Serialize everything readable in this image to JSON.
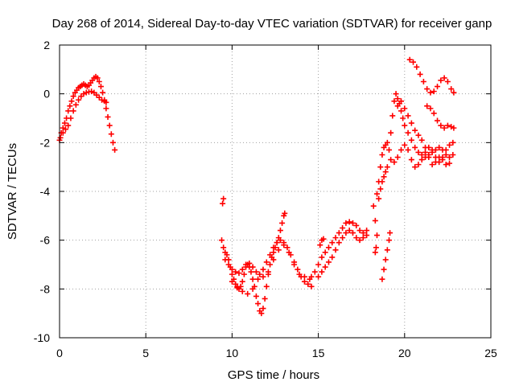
{
  "chart_data": {
    "type": "scatter",
    "title": "Day 268 of 2014, Sidereal Day-to-day VTEC variation (SDTVAR) for receiver ganp",
    "xlabel": "GPS time / hours",
    "ylabel": "SDTVAR / TECUs",
    "xlim": [
      0,
      25
    ],
    "ylim": [
      -10,
      2
    ],
    "x_ticks": [
      0,
      5,
      10,
      15,
      20,
      25
    ],
    "y_ticks": [
      -10,
      -8,
      -6,
      -4,
      -2,
      0,
      2
    ],
    "grid": true,
    "marker": "+",
    "color": "#ff0000",
    "series": [
      {
        "points": [
          [
            0.0,
            -1.9
          ],
          [
            0.1,
            -1.6
          ],
          [
            0.2,
            -1.4
          ],
          [
            0.3,
            -1.2
          ],
          [
            0.4,
            -1.0
          ],
          [
            0.5,
            -0.7
          ],
          [
            0.6,
            -0.5
          ],
          [
            0.7,
            -0.3
          ],
          [
            0.8,
            -0.1
          ],
          [
            0.9,
            0.05
          ],
          [
            1.0,
            0.15
          ],
          [
            1.1,
            0.25
          ],
          [
            1.2,
            0.3
          ],
          [
            1.3,
            0.35
          ],
          [
            1.4,
            0.4
          ],
          [
            1.5,
            0.35
          ],
          [
            1.6,
            0.3
          ],
          [
            1.7,
            0.35
          ],
          [
            1.8,
            0.45
          ],
          [
            1.9,
            0.55
          ],
          [
            2.0,
            0.65
          ],
          [
            2.1,
            0.7
          ],
          [
            2.2,
            0.65
          ],
          [
            2.3,
            0.5
          ],
          [
            2.4,
            0.3
          ],
          [
            2.5,
            0.05
          ],
          [
            2.6,
            -0.25
          ],
          [
            2.7,
            -0.6
          ],
          [
            2.8,
            -0.95
          ],
          [
            2.9,
            -1.3
          ],
          [
            3.0,
            -1.65
          ],
          [
            3.1,
            -2.0
          ],
          [
            3.2,
            -2.3
          ],
          [
            0.05,
            -1.8
          ],
          [
            0.2,
            -1.6
          ],
          [
            0.35,
            -1.45
          ],
          [
            0.5,
            -1.3
          ],
          [
            0.65,
            -1.0
          ],
          [
            0.8,
            -0.7
          ],
          [
            0.95,
            -0.45
          ],
          [
            1.1,
            -0.25
          ],
          [
            1.25,
            -0.1
          ],
          [
            1.4,
            0.0
          ],
          [
            1.55,
            0.05
          ],
          [
            1.7,
            0.08
          ],
          [
            1.85,
            0.1
          ],
          [
            2.0,
            0.05
          ],
          [
            2.15,
            -0.05
          ],
          [
            2.3,
            -0.15
          ],
          [
            2.45,
            -0.25
          ],
          [
            2.6,
            -0.3
          ],
          [
            2.7,
            -0.35
          ],
          [
            9.45,
            -4.5
          ],
          [
            9.5,
            -4.3
          ],
          [
            9.4,
            -6.0
          ],
          [
            9.5,
            -6.3
          ],
          [
            9.6,
            -6.5
          ],
          [
            9.7,
            -6.6
          ],
          [
            9.8,
            -6.8
          ],
          [
            9.9,
            -7.1
          ],
          [
            10.0,
            -7.4
          ],
          [
            10.1,
            -7.6
          ],
          [
            10.2,
            -7.8
          ],
          [
            10.3,
            -7.95
          ],
          [
            10.4,
            -8.0
          ],
          [
            10.5,
            -7.9
          ],
          [
            10.6,
            -7.7
          ],
          [
            10.7,
            -7.4
          ],
          [
            10.8,
            -7.1
          ],
          [
            10.9,
            -7.0
          ],
          [
            11.0,
            -7.1
          ],
          [
            11.1,
            -7.3
          ],
          [
            11.2,
            -7.6
          ],
          [
            11.3,
            -7.9
          ],
          [
            11.4,
            -8.3
          ],
          [
            11.5,
            -8.6
          ],
          [
            11.6,
            -8.9
          ],
          [
            11.7,
            -9.0
          ],
          [
            11.8,
            -8.8
          ],
          [
            11.9,
            -8.4
          ],
          [
            12.0,
            -7.9
          ],
          [
            12.1,
            -7.4
          ],
          [
            12.2,
            -7.0
          ],
          [
            12.3,
            -6.7
          ],
          [
            12.4,
            -6.5
          ],
          [
            12.5,
            -6.3
          ],
          [
            12.6,
            -6.1
          ],
          [
            12.7,
            -5.9
          ],
          [
            12.8,
            -5.6
          ],
          [
            12.9,
            -5.3
          ],
          [
            13.0,
            -5.0
          ],
          [
            13.05,
            -4.9
          ],
          [
            9.6,
            -6.8
          ],
          [
            9.8,
            -7.0
          ],
          [
            10.0,
            -7.2
          ],
          [
            10.2,
            -7.3
          ],
          [
            10.4,
            -7.35
          ],
          [
            10.6,
            -7.2
          ],
          [
            10.8,
            -7.0
          ],
          [
            11.0,
            -6.95
          ],
          [
            11.2,
            -7.1
          ],
          [
            11.4,
            -7.3
          ],
          [
            11.6,
            -7.4
          ],
          [
            11.8,
            -7.2
          ],
          [
            12.0,
            -6.9
          ],
          [
            12.2,
            -6.6
          ],
          [
            12.4,
            -6.3
          ],
          [
            12.6,
            -6.1
          ],
          [
            12.8,
            -6.0
          ],
          [
            13.0,
            -6.1
          ],
          [
            13.2,
            -6.3
          ],
          [
            13.4,
            -6.6
          ],
          [
            13.6,
            -6.9
          ],
          [
            13.8,
            -7.2
          ],
          [
            14.0,
            -7.5
          ],
          [
            14.2,
            -7.7
          ],
          [
            14.4,
            -7.8
          ],
          [
            14.6,
            -7.9
          ],
          [
            10.0,
            -7.7
          ],
          [
            10.3,
            -7.9
          ],
          [
            10.6,
            -8.1
          ],
          [
            10.9,
            -8.2
          ],
          [
            11.2,
            -8.0
          ],
          [
            11.5,
            -7.6
          ],
          [
            11.8,
            -7.5
          ],
          [
            12.1,
            -7.3
          ],
          [
            12.4,
            -6.8
          ],
          [
            12.7,
            -6.4
          ],
          [
            13.0,
            -6.2
          ],
          [
            13.3,
            -6.5
          ],
          [
            13.6,
            -7.0
          ],
          [
            13.9,
            -7.4
          ],
          [
            14.2,
            -7.5
          ],
          [
            14.5,
            -7.6
          ],
          [
            14.6,
            -7.5
          ],
          [
            14.8,
            -7.3
          ],
          [
            15.0,
            -7.0
          ],
          [
            15.2,
            -6.7
          ],
          [
            15.4,
            -6.5
          ],
          [
            15.6,
            -6.3
          ],
          [
            15.8,
            -6.1
          ],
          [
            16.0,
            -5.9
          ],
          [
            16.2,
            -5.7
          ],
          [
            16.4,
            -5.5
          ],
          [
            16.6,
            -5.3
          ],
          [
            16.8,
            -5.25
          ],
          [
            17.0,
            -5.3
          ],
          [
            17.2,
            -5.4
          ],
          [
            17.4,
            -5.6
          ],
          [
            17.6,
            -5.7
          ],
          [
            17.8,
            -5.8
          ],
          [
            15.0,
            -7.5
          ],
          [
            15.2,
            -7.3
          ],
          [
            15.4,
            -7.1
          ],
          [
            15.6,
            -6.9
          ],
          [
            15.8,
            -6.7
          ],
          [
            16.0,
            -6.4
          ],
          [
            16.2,
            -6.1
          ],
          [
            16.4,
            -5.9
          ],
          [
            16.6,
            -5.7
          ],
          [
            16.8,
            -5.6
          ],
          [
            17.0,
            -5.7
          ],
          [
            17.2,
            -5.9
          ],
          [
            17.4,
            -6.0
          ],
          [
            17.6,
            -5.9
          ],
          [
            17.8,
            -5.6
          ],
          [
            15.1,
            -6.2
          ],
          [
            15.2,
            -6.0
          ],
          [
            15.3,
            -5.95
          ],
          [
            18.2,
            -4.6
          ],
          [
            18.3,
            -5.2
          ],
          [
            18.4,
            -5.8
          ],
          [
            18.35,
            -6.3
          ],
          [
            18.3,
            -6.5
          ],
          [
            18.5,
            -4.3
          ],
          [
            18.6,
            -3.9
          ],
          [
            18.7,
            -3.6
          ],
          [
            18.8,
            -3.4
          ],
          [
            18.9,
            -3.2
          ],
          [
            19.0,
            -3.0
          ],
          [
            18.7,
            -7.6
          ],
          [
            18.8,
            -7.2
          ],
          [
            18.9,
            -6.8
          ],
          [
            19.0,
            -6.4
          ],
          [
            19.1,
            -6.0
          ],
          [
            19.15,
            -5.7
          ],
          [
            18.4,
            -4.1
          ],
          [
            18.5,
            -3.6
          ],
          [
            18.6,
            -3.0
          ],
          [
            18.7,
            -2.5
          ],
          [
            18.8,
            -2.2
          ],
          [
            18.9,
            -2.1
          ],
          [
            19.0,
            -2.0
          ],
          [
            19.1,
            -2.3
          ],
          [
            19.2,
            -2.7
          ],
          [
            19.2,
            -1.6
          ],
          [
            19.3,
            -0.9
          ],
          [
            19.4,
            -0.3
          ],
          [
            19.5,
            0.0
          ],
          [
            19.6,
            -0.2
          ],
          [
            19.7,
            -0.4
          ],
          [
            19.8,
            -0.7
          ],
          [
            19.9,
            -1.0
          ],
          [
            20.0,
            -1.3
          ],
          [
            20.2,
            -1.6
          ],
          [
            20.4,
            -1.9
          ],
          [
            20.6,
            -2.2
          ],
          [
            20.8,
            -2.4
          ],
          [
            21.0,
            -2.5
          ],
          [
            21.2,
            -2.6
          ],
          [
            21.4,
            -2.5
          ],
          [
            21.6,
            -2.4
          ],
          [
            21.8,
            -2.3
          ],
          [
            22.0,
            -2.2
          ],
          [
            22.2,
            -2.3
          ],
          [
            22.4,
            -2.5
          ],
          [
            22.6,
            -2.6
          ],
          [
            22.8,
            -2.5
          ],
          [
            19.4,
            -2.8
          ],
          [
            19.6,
            -2.6
          ],
          [
            19.8,
            -2.3
          ],
          [
            20.0,
            -2.1
          ],
          [
            20.2,
            -2.3
          ],
          [
            20.4,
            -2.7
          ],
          [
            20.6,
            -3.0
          ],
          [
            20.8,
            -2.9
          ],
          [
            21.0,
            -2.7
          ],
          [
            21.2,
            -2.4
          ],
          [
            21.4,
            -2.2
          ],
          [
            21.6,
            -2.3
          ],
          [
            21.8,
            -2.6
          ],
          [
            22.0,
            -2.8
          ],
          [
            22.2,
            -2.6
          ],
          [
            22.4,
            -2.3
          ],
          [
            22.6,
            -2.1
          ],
          [
            22.8,
            -2.0
          ],
          [
            19.6,
            -0.5
          ],
          [
            19.8,
            -0.3
          ],
          [
            20.0,
            -0.6
          ],
          [
            20.2,
            -0.9
          ],
          [
            20.4,
            -1.2
          ],
          [
            20.6,
            -1.5
          ],
          [
            20.8,
            -1.7
          ],
          [
            21.0,
            -1.9
          ],
          [
            21.2,
            -2.2
          ],
          [
            21.4,
            -2.6
          ],
          [
            21.6,
            -2.9
          ],
          [
            21.8,
            -2.8
          ],
          [
            22.0,
            -2.6
          ],
          [
            22.2,
            -2.7
          ],
          [
            22.4,
            -2.9
          ],
          [
            22.6,
            -2.85
          ],
          [
            20.3,
            1.4
          ],
          [
            20.5,
            1.3
          ],
          [
            20.7,
            1.1
          ],
          [
            20.9,
            0.8
          ],
          [
            21.1,
            0.5
          ],
          [
            21.3,
            0.2
          ],
          [
            21.5,
            0.05
          ],
          [
            21.7,
            0.1
          ],
          [
            21.9,
            0.3
          ],
          [
            22.1,
            0.55
          ],
          [
            22.3,
            0.65
          ],
          [
            22.5,
            0.5
          ],
          [
            22.7,
            0.2
          ],
          [
            22.85,
            0.05
          ],
          [
            21.3,
            -0.5
          ],
          [
            21.5,
            -0.6
          ],
          [
            21.7,
            -0.8
          ],
          [
            21.9,
            -1.1
          ],
          [
            22.1,
            -1.3
          ],
          [
            22.3,
            -1.4
          ],
          [
            22.5,
            -1.3
          ],
          [
            22.7,
            -1.35
          ],
          [
            22.85,
            -1.4
          ]
        ]
      }
    ]
  }
}
